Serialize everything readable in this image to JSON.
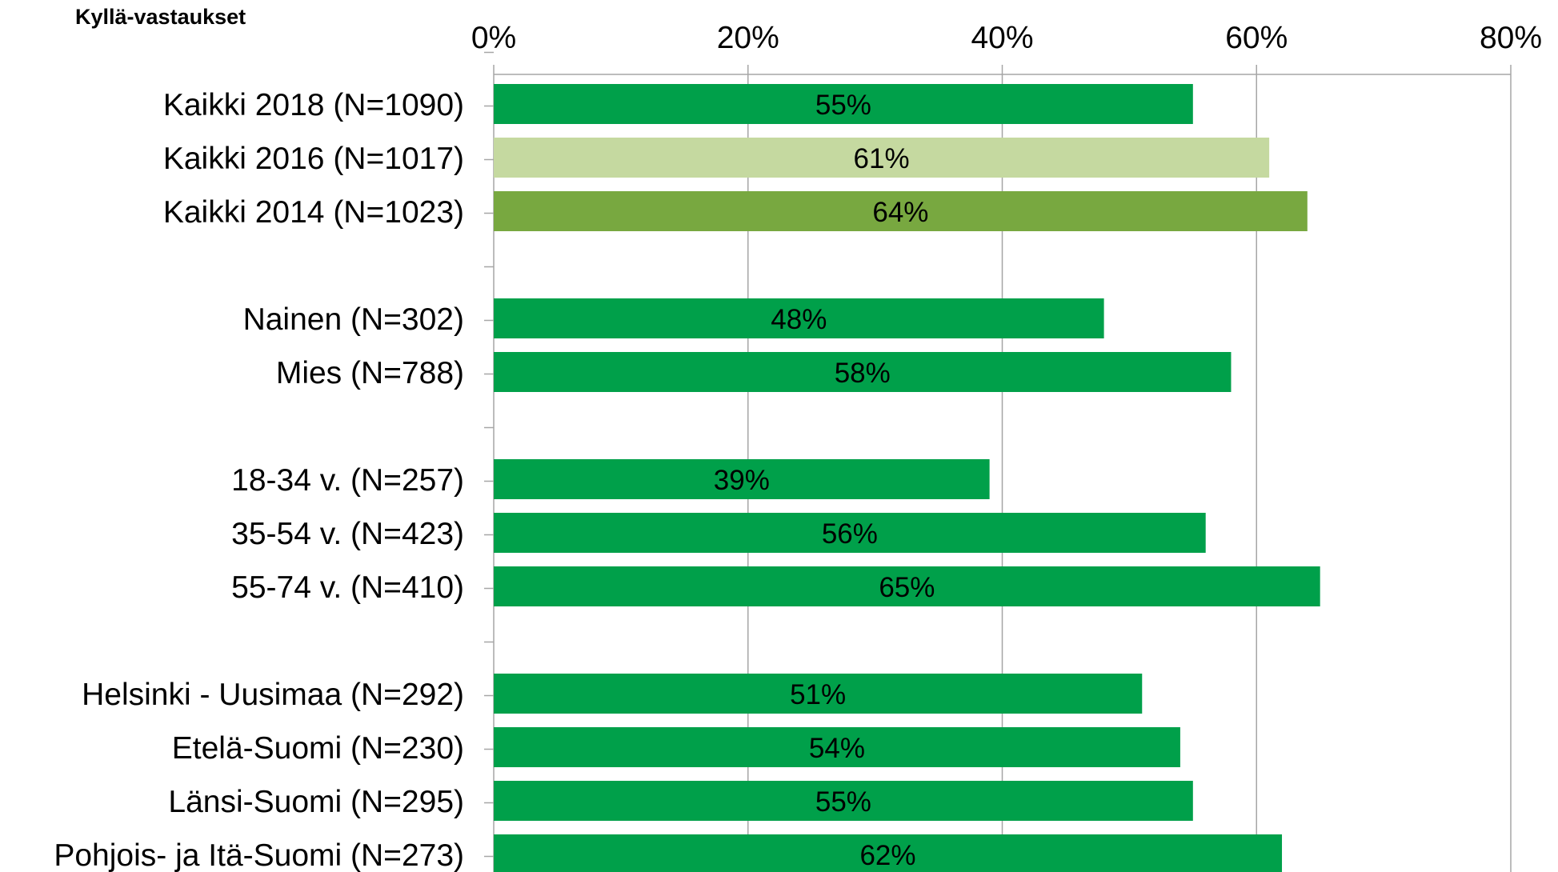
{
  "header_label": "Kyllä-vastaukset",
  "chart_data": {
    "type": "bar",
    "orientation": "horizontal",
    "title": "",
    "xlabel": "",
    "ylabel": "",
    "xlim": [
      0,
      80
    ],
    "x_ticks": [
      "0%",
      "20%",
      "40%",
      "60%",
      "80%"
    ],
    "grid": "vertical",
    "legend": "none",
    "categories": [
      "Kaikki 2018 (N=1090)",
      "Kaikki 2016 (N=1017)",
      "Kaikki 2014 (N=1023)",
      "",
      "Nainen (N=302)",
      "Mies (N=788)",
      "",
      "18-34 v. (N=257)",
      "35-54 v. (N=423)",
      "55-74 v. (N=410)",
      "",
      "Helsinki - Uusimaa (N=292)",
      "Etelä-Suomi (N=230)",
      "Länsi-Suomi (N=295)",
      "Pohjois- ja Itä-Suomi (N=273)"
    ],
    "values": [
      55,
      61,
      64,
      null,
      48,
      58,
      null,
      39,
      56,
      65,
      null,
      51,
      54,
      55,
      62
    ],
    "value_labels": [
      "55%",
      "61%",
      "64%",
      "",
      "48%",
      "58%",
      "",
      "39%",
      "56%",
      "65%",
      "",
      "51%",
      "54%",
      "55%",
      "62%"
    ],
    "bar_colors": [
      "#00A04A",
      "#C5D9A0",
      "#78A840",
      null,
      "#00A04A",
      "#00A04A",
      null,
      "#00A04A",
      "#00A04A",
      "#00A04A",
      null,
      "#00A04A",
      "#00A04A",
      "#00A04A",
      "#00A04A"
    ],
    "colors": {
      "primary": "#00A04A",
      "year_2016": "#C5D9A0",
      "year_2014": "#78A840",
      "gridline": "#A6A6A6",
      "axis": "#A6A6A6"
    }
  }
}
